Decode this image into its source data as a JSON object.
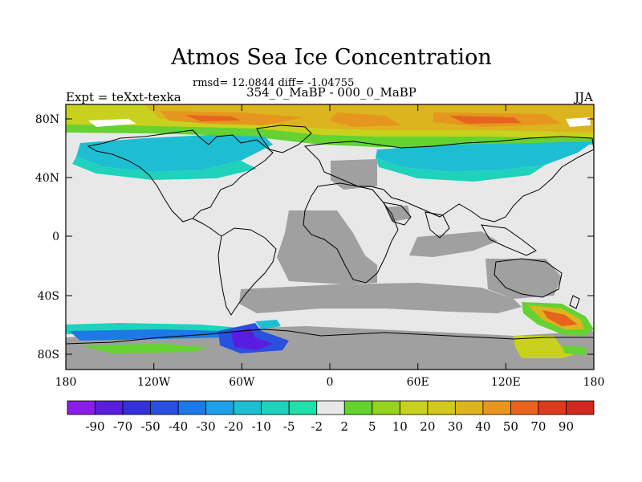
{
  "header": {
    "title": "Atmos Sea Ice Concentration",
    "stats": "rmsd= 12.0844 diff= -1.04755",
    "subtitle": "354_0_MaBP - 000_0_MaBP",
    "experiment": "Expt = teXxt-texka",
    "season": "JJA"
  },
  "map": {
    "land_color": "#e8e8e8",
    "missing_color": "#a0a0a0",
    "lon_ticks": [
      "180",
      "120W",
      "60W",
      "0",
      "60E",
      "120E",
      "180"
    ],
    "lat_ticks": [
      "80N",
      "40N",
      "0",
      "40S",
      "80S"
    ]
  },
  "legend": {
    "labels": [
      "-90",
      "-70",
      "-50",
      "-40",
      "-30",
      "-20",
      "-10",
      "-5",
      "-2",
      "2",
      "5",
      "10",
      "20",
      "30",
      "40",
      "50",
      "70",
      "90"
    ],
    "colors": [
      "#8a1ee8",
      "#5a1de0",
      "#3232d8",
      "#2a50e0",
      "#1e78e6",
      "#1ea0e8",
      "#1ebed2",
      "#1ed2bc",
      "#1ee0a8",
      "#e8e8e8",
      "#64d232",
      "#96d21e",
      "#c8d21e",
      "#d2c81e",
      "#dcb41e",
      "#e6961e",
      "#e6641e",
      "#dc3c1e",
      "#d2281e"
    ]
  }
}
